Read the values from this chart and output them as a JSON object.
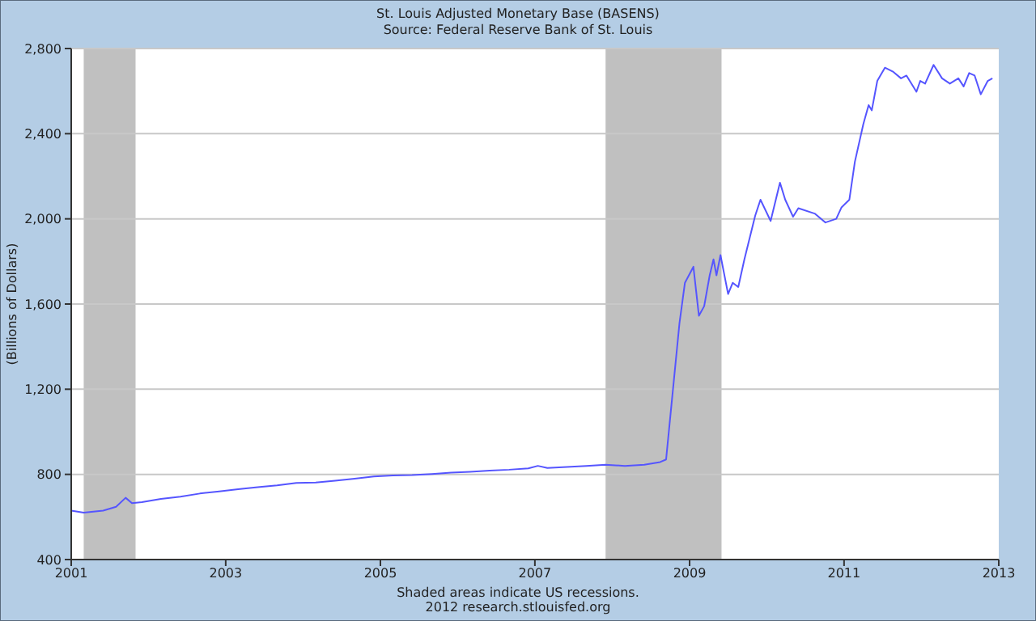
{
  "chart_data": {
    "type": "line",
    "title": "St. Louis Adjusted Monetary Base (BASENS)",
    "subtitle": "Source: Federal Reserve Bank of St. Louis",
    "ylabel": "(Billions of Dollars)",
    "x": [
      "2001-01-01",
      "2001-03-01",
      "2001-06-01",
      "2001-08-01",
      "2001-09-15",
      "2001-10-15",
      "2001-12-01",
      "2002-03-01",
      "2002-06-01",
      "2002-09-01",
      "2002-12-01",
      "2003-03-01",
      "2003-06-01",
      "2003-09-01",
      "2003-12-01",
      "2004-03-01",
      "2004-06-01",
      "2004-09-01",
      "2004-12-01",
      "2005-03-01",
      "2005-06-01",
      "2005-09-01",
      "2005-12-01",
      "2006-03-01",
      "2006-06-01",
      "2006-09-01",
      "2006-12-01",
      "2007-01-15",
      "2007-03-01",
      "2007-06-01",
      "2007-09-01",
      "2007-12-01",
      "2008-03-01",
      "2008-06-01",
      "2008-08-15",
      "2008-09-12",
      "2008-11-14",
      "2008-12-10",
      "2009-01-19",
      "2009-02-14",
      "2009-03-11",
      "2009-04-06",
      "2009-04-24",
      "2009-05-08",
      "2009-05-27",
      "2009-07-02",
      "2009-07-24",
      "2009-08-19",
      "2009-09-17",
      "2009-11-07",
      "2009-12-02",
      "2010-01-19",
      "2010-03-04",
      "2010-03-29",
      "2010-05-05",
      "2010-05-30",
      "2010-08-15",
      "2010-10-05",
      "2010-11-25",
      "2010-12-20",
      "2011-01-26",
      "2011-02-21",
      "2011-04-02",
      "2011-04-27",
      "2011-05-12",
      "2011-06-07",
      "2011-07-13",
      "2011-08-22",
      "2011-09-27",
      "2011-10-23",
      "2011-12-09",
      "2011-12-27",
      "2012-01-19",
      "2012-02-28",
      "2012-04-08",
      "2012-05-15",
      "2012-06-24",
      "2012-07-19",
      "2012-08-14",
      "2012-09-09",
      "2012-10-08",
      "2012-11-10",
      "2012-12-02"
    ],
    "series": [
      {
        "color": "#5555ff",
        "values": [
          630,
          620,
          630,
          648,
          690,
          665,
          670,
          685,
          695,
          710,
          720,
          730,
          740,
          748,
          760,
          762,
          770,
          780,
          790,
          795,
          797,
          802,
          808,
          812,
          818,
          822,
          828,
          840,
          830,
          835,
          840,
          845,
          840,
          845,
          858,
          870,
          1508,
          1700,
          1775,
          1545,
          1590,
          1735,
          1810,
          1735,
          1830,
          1647,
          1700,
          1680,
          1810,
          2015,
          2090,
          1990,
          2170,
          2090,
          2010,
          2050,
          2025,
          1983,
          2000,
          2054,
          2090,
          2268,
          2445,
          2534,
          2510,
          2648,
          2710,
          2690,
          2660,
          2673,
          2597,
          2648,
          2635,
          2723,
          2660,
          2635,
          2660,
          2622,
          2685,
          2673,
          2585,
          2648,
          2660
        ]
      }
    ],
    "xlim": [
      "2001-01-01",
      "2013-01-01"
    ],
    "xticks": [
      "2001",
      "2003",
      "2005",
      "2007",
      "2009",
      "2011",
      "2013"
    ],
    "ylim": [
      400,
      2800
    ],
    "yticks": [
      400,
      800,
      {
        "value": 1200,
        "label": "1,200"
      },
      {
        "value": 1600,
        "label": "1,600"
      },
      {
        "value": 2000,
        "label": "2,000"
      },
      {
        "value": 2400,
        "label": "2,400"
      },
      {
        "value": 2800,
        "label": "2,800"
      }
    ],
    "bands": [
      {
        "axis": "x",
        "from": "2001-03-01",
        "to": "2001-11-01",
        "color": "#c0c0c0"
      },
      {
        "axis": "x",
        "from": "2007-12-01",
        "to": "2009-06-01",
        "color": "#c0c0c0"
      }
    ],
    "grid": "y",
    "annotations": [
      "Shaded areas indicate US recessions.",
      "2012 research.stlouisfed.org"
    ]
  }
}
